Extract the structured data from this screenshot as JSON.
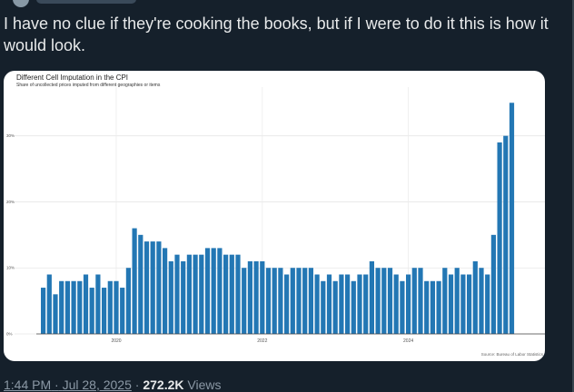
{
  "tweet": {
    "text": "I have no clue if they're cooking the books, but if I were to do it this is how it would look.",
    "time": "1:44 PM",
    "date": "Jul 28, 2025",
    "separator": "·",
    "views_count": "272.2K",
    "views_label": "Views"
  },
  "colors": {
    "background": "#15202b",
    "text": "#e7e9ea",
    "muted": "#8b98a5",
    "bar": "#2377b4"
  },
  "chart_data": {
    "type": "bar",
    "title": "Different Cell Imputation in the CPI",
    "subtitle": "Share of uncollected prices imputed from different geographies or items",
    "source": "Source: Bureau of Labor Statistics",
    "xlabel": "",
    "ylabel": "",
    "ylim": [
      0,
      36
    ],
    "yticks": [
      0,
      10,
      20,
      30
    ],
    "ytick_labels": [
      "0%",
      "10%",
      "20%",
      "30%"
    ],
    "xticks": [
      {
        "label": "2020",
        "index": 12
      },
      {
        "label": "2022",
        "index": 36
      },
      {
        "label": "2024",
        "index": 60
      }
    ],
    "grid": true,
    "start": "2019-01",
    "frequency": "monthly",
    "values": [
      7,
      9,
      6,
      8,
      8,
      8,
      8,
      9,
      7,
      9,
      7,
      8,
      8,
      7,
      10,
      16,
      15,
      14,
      14,
      14,
      13,
      11,
      12,
      11,
      12,
      12,
      12,
      13,
      13,
      13,
      12,
      12,
      12,
      10,
      11,
      11,
      11,
      10,
      10,
      10,
      9,
      10,
      10,
      10,
      10,
      9,
      8,
      9,
      8,
      9,
      9,
      8,
      9,
      9,
      11,
      10,
      10,
      10,
      9,
      8,
      9,
      10,
      10,
      8,
      8,
      8,
      10,
      9,
      10,
      9,
      9,
      11,
      10,
      9,
      15,
      29,
      30,
      35
    ]
  }
}
